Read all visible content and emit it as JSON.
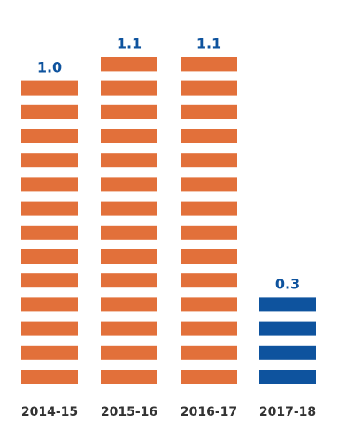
{
  "chart_data": {
    "type": "bar",
    "categories": [
      "2014-15",
      "2015-16",
      "2016-17",
      "2017-18"
    ],
    "values": [
      1.0,
      1.1,
      1.1,
      0.3
    ],
    "data_labels": [
      "1.0",
      "1.1",
      "1.1",
      "0.3"
    ],
    "ylim": [
      0,
      1.1
    ],
    "grid": false,
    "legend": "none",
    "bar_style": "stacked-segments",
    "colors": {
      "historical": "#E2703A",
      "current": "#0E539E",
      "label": "#0E539E",
      "tick": "#333333"
    },
    "bar_colors": [
      "historical",
      "historical",
      "historical",
      "current"
    ]
  }
}
